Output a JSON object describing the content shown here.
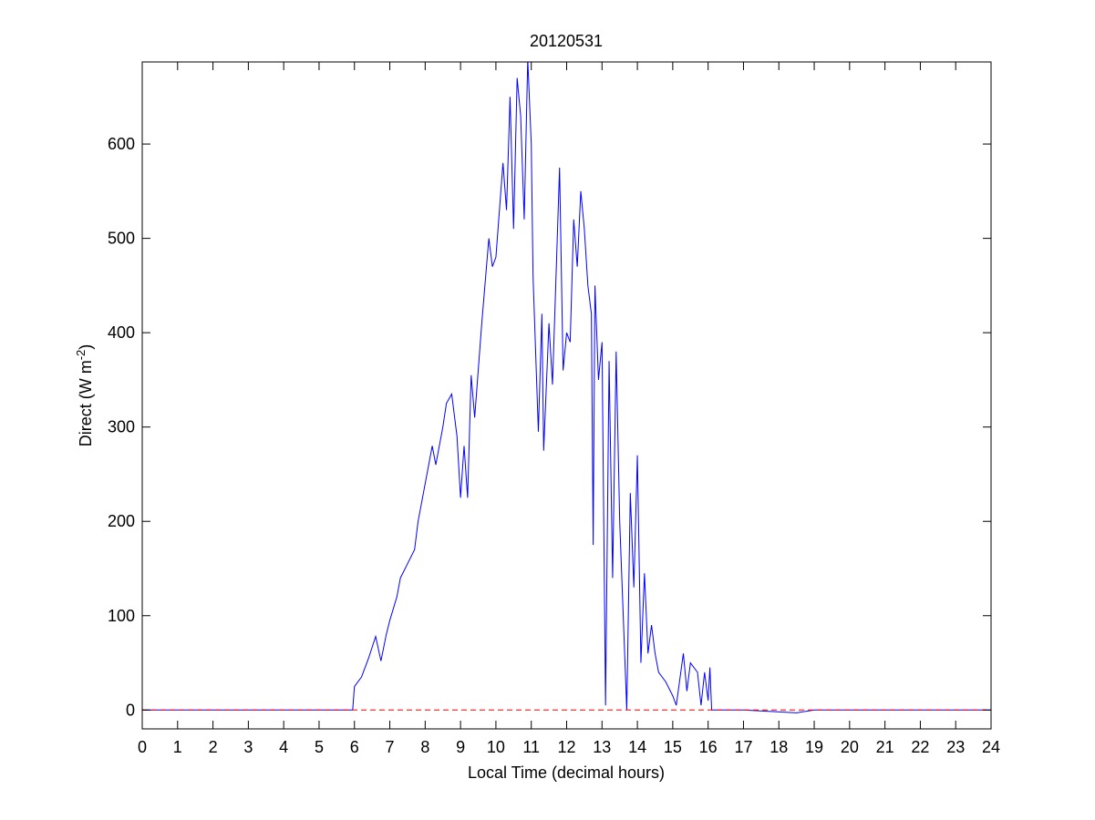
{
  "chart_data": {
    "type": "line",
    "title": "20120531",
    "xlabel": "Local Time (decimal hours)",
    "ylabel": {
      "text": "Direct (W m",
      "superscript": "-2",
      "suffix": ")"
    },
    "xlim": [
      0,
      24
    ],
    "xticks": [
      0,
      1,
      2,
      3,
      4,
      5,
      6,
      7,
      8,
      9,
      10,
      11,
      12,
      13,
      14,
      15,
      16,
      17,
      18,
      19,
      20,
      21,
      22,
      23,
      24
    ],
    "ylim": [
      -20,
      687
    ],
    "yticks": [
      0,
      100,
      200,
      300,
      400,
      500,
      600
    ],
    "series": [
      {
        "color": "#0000ff",
        "dash": false,
        "x": [
          0,
          1,
          2,
          2.3,
          5.5,
          5.95,
          6.0,
          6.2,
          6.4,
          6.6,
          6.75,
          6.9,
          7.0,
          7.2,
          7.3,
          7.5,
          7.7,
          7.8,
          8.0,
          8.2,
          8.3,
          8.5,
          8.6,
          8.75,
          8.9,
          9.0,
          9.1,
          9.2,
          9.3,
          9.4,
          9.6,
          9.8,
          9.9,
          10.0,
          10.2,
          10.3,
          10.4,
          10.5,
          10.6,
          10.7,
          10.8,
          10.9,
          11.0,
          11.05,
          11.2,
          11.3,
          11.35,
          11.5,
          11.6,
          11.8,
          11.9,
          12.0,
          12.1,
          12.2,
          12.3,
          12.4,
          12.5,
          12.6,
          12.7,
          12.75,
          12.8,
          12.9,
          13.0,
          13.1,
          13.2,
          13.3,
          13.4,
          13.5,
          13.7,
          13.8,
          13.9,
          14.0,
          14.1,
          14.2,
          14.3,
          14.4,
          14.5,
          14.6,
          14.8,
          15.0,
          15.1,
          15.3,
          15.4,
          15.5,
          15.7,
          15.8,
          15.9,
          16.0,
          16.05,
          16.1,
          17,
          18.5,
          19,
          24
        ],
        "values": [
          0,
          0,
          0,
          0,
          0,
          0,
          25,
          35,
          55,
          78,
          52,
          80,
          95,
          120,
          140,
          155,
          170,
          200,
          240,
          280,
          260,
          300,
          325,
          335,
          290,
          225,
          280,
          225,
          355,
          310,
          410,
          500,
          470,
          480,
          580,
          530,
          650,
          510,
          670,
          630,
          520,
          690,
          600,
          460,
          295,
          420,
          275,
          410,
          345,
          575,
          360,
          400,
          390,
          520,
          470,
          550,
          510,
          450,
          420,
          175,
          450,
          350,
          390,
          5,
          370,
          140,
          380,
          200,
          0,
          230,
          130,
          270,
          50,
          145,
          60,
          90,
          60,
          40,
          30,
          15,
          5,
          60,
          20,
          50,
          40,
          5,
          40,
          10,
          45,
          0,
          0,
          -3,
          0,
          0
        ]
      },
      {
        "color": "#ff0000",
        "dash": true,
        "x": [
          0,
          24
        ],
        "values": [
          0,
          0
        ]
      }
    ]
  }
}
